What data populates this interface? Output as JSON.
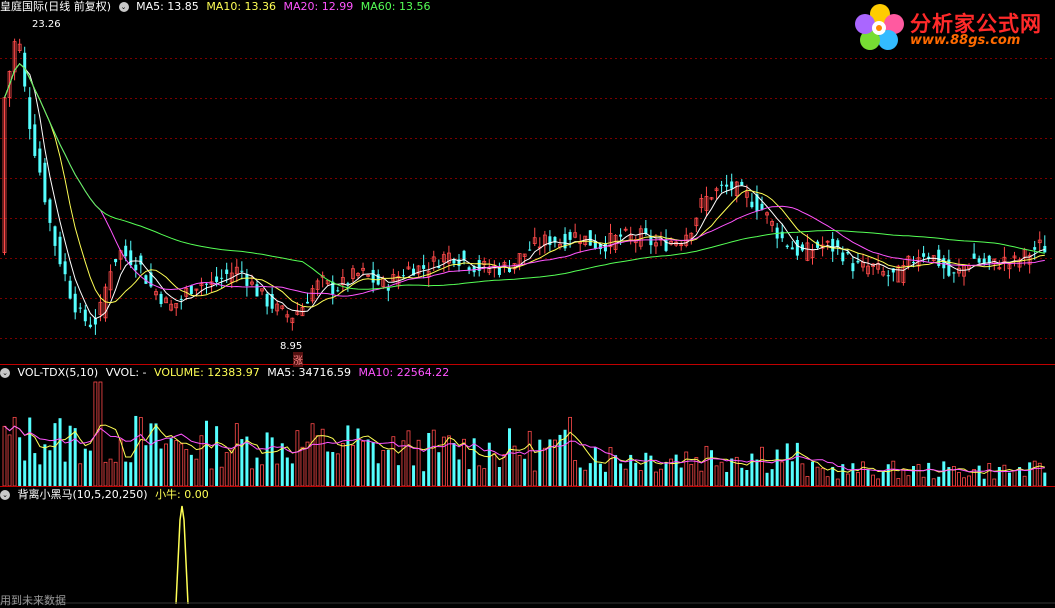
{
  "price_panel": {
    "stock_title": "皇庭国际(日线 前复权)",
    "ma_labels": [
      "MA5: 13.85",
      "MA10: 13.36",
      "MA20: 12.99",
      "MA60: 13.56"
    ],
    "high_label": "23.26",
    "low_label": "8.95",
    "marker_label": "涨"
  },
  "volume_panel": {
    "title": "VOL-TDX(5,10)",
    "vvol_label": "VVOL: -",
    "volume_label": "VOLUME: 12383.97",
    "ma5_label": "MA5: 34716.59",
    "ma10_label": "MA10: 22564.22"
  },
  "indicator_panel": {
    "title": "背离小黑马(10,5,20,250)",
    "value_label": "小牛: 0.00"
  },
  "footer_note": "用到未来数据",
  "logo": {
    "title": "分析家公式网",
    "url": "www.88gs.com"
  },
  "colors": {
    "up": "#ff4a4a",
    "down": "#55ffff",
    "ma5": "#ffffff",
    "ma10": "#ffff55",
    "ma20": "#ff55ff",
    "ma60": "#55ff55",
    "grid": "#7a0000",
    "separator": "#c00000"
  }
}
